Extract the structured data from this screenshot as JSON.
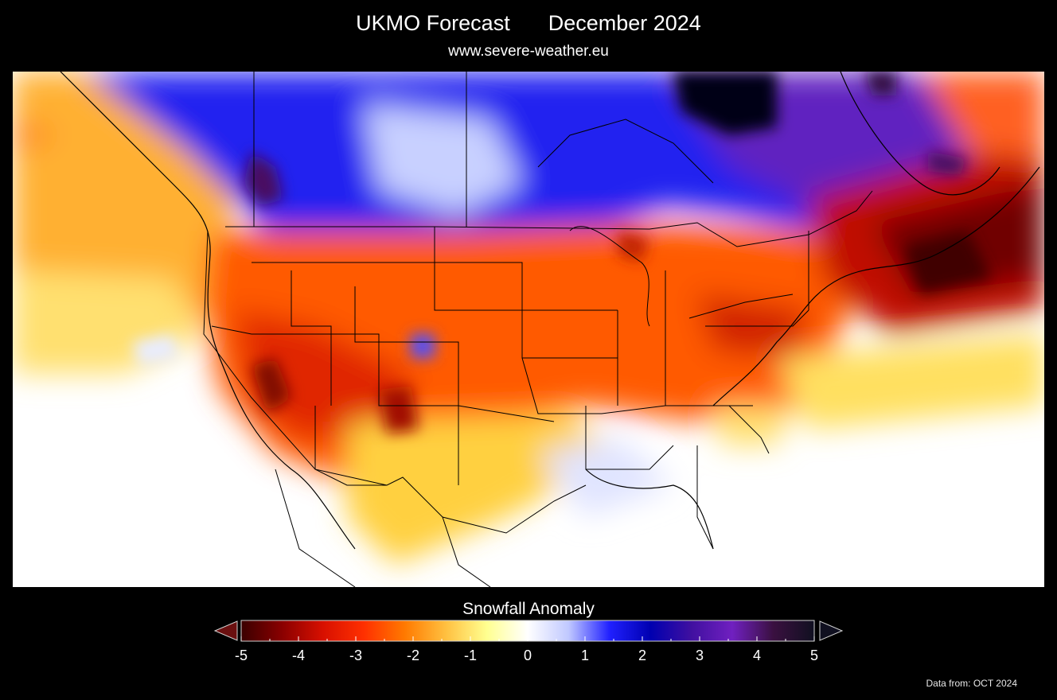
{
  "header": {
    "title": "UKMO Forecast",
    "period": "December 2024",
    "website": "www.severe-weather.eu"
  },
  "map": {
    "region": "North America",
    "variable": "Snowfall Anomaly",
    "background_color": "#ffffff",
    "border_color": "#000000"
  },
  "legend": {
    "title": "Snowfall Anomaly",
    "ticks": [
      "-5",
      "-4",
      "-3",
      "-2",
      "-1",
      "0",
      "1",
      "2",
      "3",
      "4",
      "5"
    ],
    "range": [
      -5,
      5
    ],
    "colors": [
      "#3a0000",
      "#8a0000",
      "#d81000",
      "#ff3000",
      "#ff7a00",
      "#ffc040",
      "#ffff90",
      "#ffffff",
      "#c0c8ff",
      "#2020ff",
      "#0000b0",
      "#4010a0",
      "#7020c0",
      "#3a1040",
      "#101020"
    ]
  },
  "footer": {
    "source": "Data from: OCT 2024"
  }
}
